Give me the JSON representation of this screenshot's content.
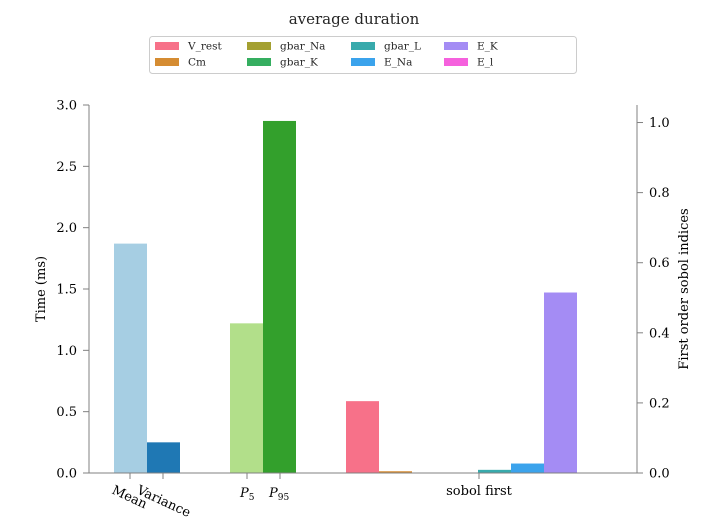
{
  "chart_data": {
    "type": "bar",
    "title": "average duration",
    "left_axis": {
      "label": "Time (ms)",
      "ylim": [
        0,
        3.0
      ],
      "ticks": [
        0.0,
        0.5,
        1.0,
        1.5,
        2.0,
        2.5,
        3.0
      ],
      "tick_labels": [
        "0.0",
        "0.5",
        "1.0",
        "1.5",
        "2.0",
        "2.5",
        "3.0"
      ]
    },
    "right_axis": {
      "label": "First order sobol indices",
      "ylim": [
        0,
        1.05
      ],
      "ticks": [
        0.0,
        0.2,
        0.4,
        0.6,
        0.8,
        1.0
      ],
      "tick_labels": [
        "0.0",
        "0.2",
        "0.4",
        "0.6",
        "0.8",
        "1.0"
      ]
    },
    "x_tick_labels": {
      "mean": "Mean",
      "variance": "Variance",
      "p5": "P",
      "p5_sub": "5",
      "p95": "P",
      "p95_sub": "95",
      "sobol": "sobol first"
    },
    "statistics": [
      {
        "name": "Mean",
        "value": 1.87,
        "color": "#a6cee3",
        "axis": "left"
      },
      {
        "name": "Variance",
        "value": 0.25,
        "color": "#1f78b4",
        "axis": "left"
      },
      {
        "name": "P5",
        "value": 1.22,
        "color": "#b2df8a",
        "axis": "left"
      },
      {
        "name": "P95",
        "value": 2.87,
        "color": "#33a02c",
        "axis": "left"
      }
    ],
    "series": [
      {
        "name": "V_rest",
        "value": 0.205,
        "color": "#f77189"
      },
      {
        "name": "Cm",
        "value": 0.005,
        "color": "#d58c32"
      },
      {
        "name": "gbar_Na",
        "value": 0.0,
        "color": "#a4a031"
      },
      {
        "name": "gbar_K",
        "value": 0.0,
        "color": "#35ae60"
      },
      {
        "name": "gbar_L",
        "value": 0.009,
        "color": "#38aaac"
      },
      {
        "name": "E_Na",
        "value": 0.027,
        "color": "#3ba3ec"
      },
      {
        "name": "E_K",
        "value": 0.515,
        "color": "#a48cf4"
      },
      {
        "name": "E_l",
        "value": 0.0,
        "color": "#f561dd"
      }
    ],
    "legend_position": "top-center"
  }
}
